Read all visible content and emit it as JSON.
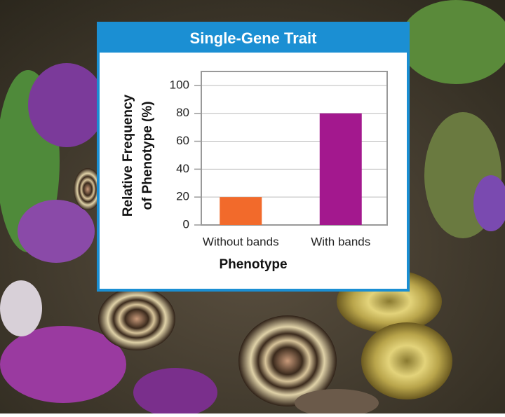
{
  "chart_data": {
    "type": "bar",
    "title": "Single-Gene Trait",
    "ylabel": [
      "Relative Frequency",
      "of Phenotype (%)"
    ],
    "xlabel": "Phenotype",
    "categories": [
      "Without bands",
      "With bands"
    ],
    "values": [
      20,
      80
    ],
    "colors": [
      "#f26a2b",
      "#a3188e"
    ],
    "ylim": [
      0,
      110
    ],
    "yticks": [
      0,
      20,
      40,
      60,
      80,
      100
    ],
    "grid": true
  }
}
